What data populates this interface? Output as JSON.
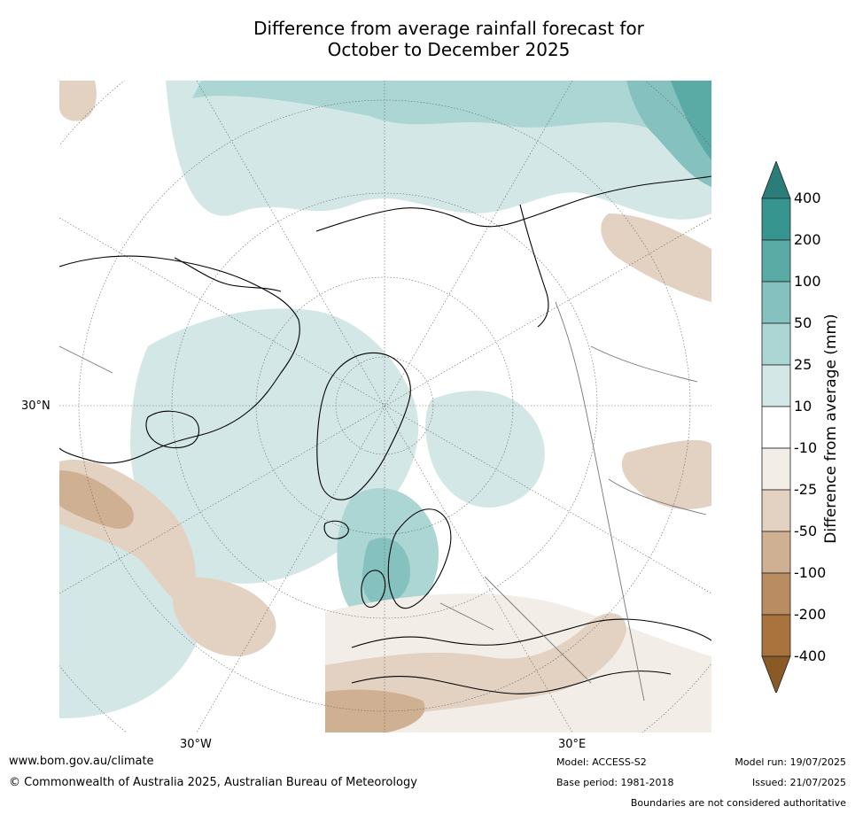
{
  "title": {
    "line1": "Difference from average rainfall forecast for",
    "line2": "October to December 2025"
  },
  "map": {
    "lat_labels": [
      "30°N"
    ],
    "lon_labels": [
      "30°W",
      "30°E"
    ]
  },
  "colorbar": {
    "label": "Difference from average (mm)",
    "ticks": [
      "400",
      "200",
      "100",
      "50",
      "25",
      "10",
      "-10",
      "-25",
      "-50",
      "-100",
      "-200",
      "-400"
    ],
    "colors": [
      "#2a7d78",
      "#36958f",
      "#5aaaa6",
      "#85c2bf",
      "#acd6d3",
      "#d3e8e6",
      "#ffffff",
      "#f2ede6",
      "#e3d1c1",
      "#d0b092",
      "#ba8c62",
      "#a8733d",
      "#8a5a26"
    ]
  },
  "footer": {
    "url": "www.bom.gov.au/climate",
    "copyright": "© Commonwealth of Australia 2025, Australian Bureau of Meteorology",
    "model": "Model: ACCESS-S2",
    "base_period": "Base period: 1981-2018",
    "model_run": "Model run: 19/07/2025",
    "issued": "Issued: 21/07/2025",
    "disclaimer": "Boundaries are not considered authoritative"
  }
}
